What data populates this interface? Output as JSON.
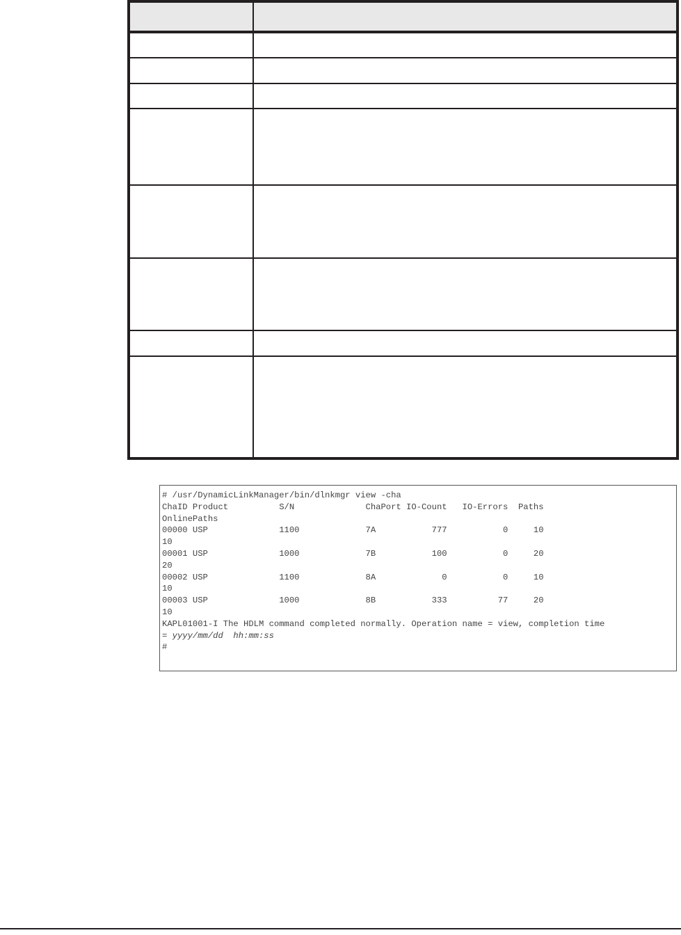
{
  "code_block": {
    "lines": [
      "# /usr/DynamicLinkManager/bin/dlnkmgr view -cha",
      "ChaID Product          S/N              ChaPort IO-Count   IO-Errors  Paths",
      "OnlinePaths",
      "00000 USP              1100             7A           777           0     10",
      "10",
      "00001 USP              1000             7B           100           0     20",
      "20",
      "00002 USP              1100             8A             0           0     10",
      "10",
      "00003 USP              1000             8B           333          77     20",
      "10",
      "KAPL01001-I The HDLM command completed normally. Operation name = view, completion time"
    ],
    "time_prefix": "= ",
    "time_placeholder": "yyyy/mm/dd  hh:mm:ss",
    "prompt": "#"
  }
}
